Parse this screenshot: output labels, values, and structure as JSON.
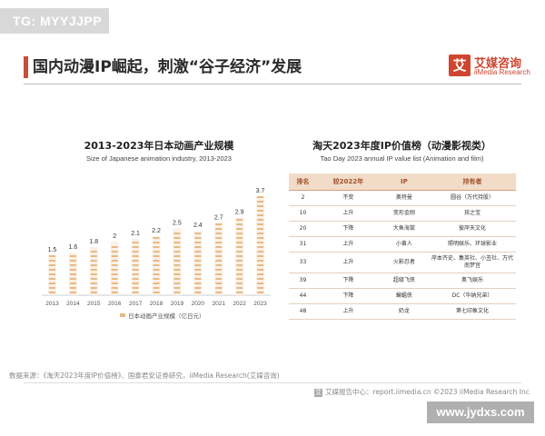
{
  "badge": "TG: MYYJJPP",
  "title": "国内动漫IP崛起，刺激“谷子经济”发展",
  "logo": {
    "mark": "艾",
    "name_cn": "艾媒咨询",
    "name_en": "iiMedia Research"
  },
  "chart_data": [
    {
      "type": "bar",
      "title": "2013-2023年日本动画产业规模",
      "subtitle": "Size of Japanese animation industry, 2013-2023",
      "categories": [
        "2013",
        "2014",
        "2015",
        "2016",
        "2017",
        "2018",
        "2019",
        "2020",
        "2021",
        "2022",
        "2023"
      ],
      "values": [
        1.5,
        1.6,
        1.8,
        2,
        2.1,
        2.2,
        2.5,
        2.4,
        2.7,
        2.9,
        3.7
      ],
      "value_labels": [
        "1.5",
        "1.6",
        "1.8",
        "2",
        "2.1",
        "2.2",
        "2.5",
        "2.4",
        "2.7",
        "2.9",
        "3.7"
      ],
      "legend": "日本动画产业规模（亿日元）",
      "legend_position": "bottom",
      "ylim": [
        0,
        4
      ],
      "grid": false,
      "colors": {
        "bar": "#e9b985",
        "bar_line": "#d99a5a",
        "axis": "#bbbbbb"
      }
    },
    {
      "type": "table",
      "title": "淘天2023年度IP价值榜（动漫影视类）",
      "subtitle": "Tao Day 2023 annual IP value list (Animation and film)",
      "columns": [
        "排名",
        "较2022年",
        "IP",
        "持有者"
      ],
      "rows": [
        [
          "2",
          "不变",
          "奥特曼",
          "圆谷（万代持股）"
        ],
        [
          "10",
          "上升",
          "变形金刚",
          "孩之宝"
        ],
        [
          "20",
          "下降",
          "大鱼海棠",
          "彼岸天文化"
        ],
        [
          "31",
          "上升",
          "小黄人",
          "照明娱乐、环球影业"
        ],
        [
          "33",
          "上升",
          "火影忍者",
          "岸本齐史、集英社、小丑社、万代南梦宫"
        ],
        [
          "39",
          "下降",
          "超级飞侠",
          "奥飞娱乐"
        ],
        [
          "44",
          "下降",
          "蝙蝠侠",
          "DC（华纳兄弟）"
        ],
        [
          "48",
          "上升",
          "奶龙",
          "第七印象文化"
        ]
      ]
    }
  ],
  "source": "数据来源：《淘天2023年度IP价值榜》、国泰君安证券研究，iiMedia Research(艾媒咨询)",
  "footer": {
    "icon": "艾",
    "text": "艾媒报告中心：report.iimedia.cn    ©2023  iiMedia Research  Inc"
  },
  "watermark": "www.jydxs.com"
}
